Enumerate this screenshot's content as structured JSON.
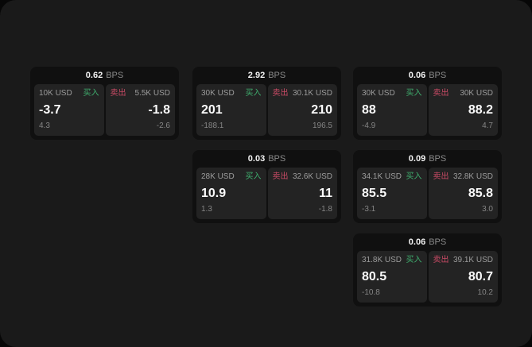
{
  "colors": {
    "buy": "#3fae6e",
    "sell": "#cb4b66"
  },
  "labels": {
    "bps": "BPS",
    "buy": "买入",
    "sell": "卖出"
  },
  "cards": [
    {
      "bps": "0.62",
      "col": 1,
      "row": 1,
      "buy": {
        "size": "10K USD",
        "value": "-3.7",
        "sub": "4.3"
      },
      "sell": {
        "size": "5.5K USD",
        "value": "-1.8",
        "sub": "-2.6"
      }
    },
    {
      "bps": "2.92",
      "col": 2,
      "row": 1,
      "buy": {
        "size": "30K USD",
        "value": "201",
        "sub": "-188.1"
      },
      "sell": {
        "size": "30.1K USD",
        "value": "210",
        "sub": "196.5"
      }
    },
    {
      "bps": "0.06",
      "col": 3,
      "row": 1,
      "buy": {
        "size": "30K USD",
        "value": "88",
        "sub": "-4.9"
      },
      "sell": {
        "size": "30K USD",
        "value": "88.2",
        "sub": "4.7"
      }
    },
    {
      "bps": "0.03",
      "col": 2,
      "row": 2,
      "buy": {
        "size": "28K USD",
        "value": "10.9",
        "sub": "1.3"
      },
      "sell": {
        "size": "32.6K USD",
        "value": "11",
        "sub": "-1.8"
      }
    },
    {
      "bps": "0.09",
      "col": 3,
      "row": 2,
      "buy": {
        "size": "34.1K USD",
        "value": "85.5",
        "sub": "-3.1"
      },
      "sell": {
        "size": "32.8K USD",
        "value": "85.8",
        "sub": "3.0"
      }
    },
    {
      "bps": "0.06",
      "col": 3,
      "row": 3,
      "buy": {
        "size": "31.8K USD",
        "value": "80.5",
        "sub": "-10.8"
      },
      "sell": {
        "size": "39.1K USD",
        "value": "80.7",
        "sub": "10.2"
      }
    }
  ]
}
